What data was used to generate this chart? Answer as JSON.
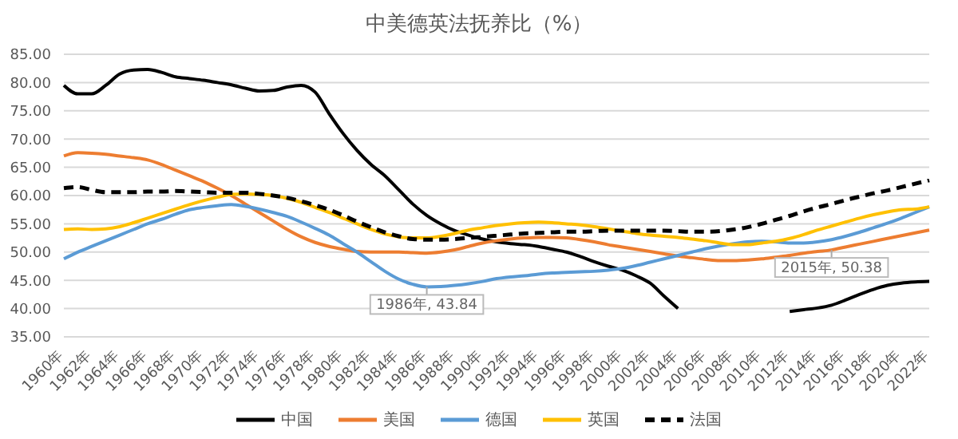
{
  "chart_data": {
    "type": "line",
    "title": "中美德英法抚养比（%）",
    "categories": [
      "1960年",
      null,
      "1962年",
      null,
      "1964年",
      null,
      "1966年",
      null,
      "1968年",
      null,
      "1970年",
      null,
      "1972年",
      null,
      "1974年",
      null,
      "1976年",
      null,
      "1978年",
      null,
      "1980年",
      null,
      "1982年",
      null,
      "1984年",
      null,
      "1986年",
      null,
      "1988年",
      null,
      "1990年",
      null,
      "1992年",
      null,
      "1994年",
      null,
      "1996年",
      null,
      "1998年",
      null,
      "2000年",
      null,
      "2002年",
      null,
      "2004年",
      null,
      "2006年",
      null,
      "2008年",
      null,
      "2010年",
      null,
      "2012年",
      null,
      "2014年",
      null,
      "2016年",
      null,
      "2018年",
      null,
      "2020年",
      null,
      "2022年"
    ],
    "series": [
      {
        "name": "中国",
        "color": "#000000",
        "values": [
          79.5,
          78,
          78,
          79.5,
          81.5,
          82.2,
          82.3,
          81.8,
          81,
          80.7,
          80.4,
          80,
          79.6,
          79,
          78.5,
          78.6,
          79.2,
          79.5,
          78.3,
          74.5,
          71,
          68,
          65.5,
          63.5,
          61,
          58.5,
          56.5,
          55,
          53.8,
          53,
          52.3,
          51.8,
          51.5,
          51.3,
          51,
          50.5,
          50,
          49.2,
          48.3,
          47.5,
          46.8,
          45.8,
          44.5,
          42.2,
          40,
          null,
          null,
          null,
          null,
          null,
          null,
          null,
          39.5,
          39.8,
          40.1,
          40.6,
          41.5,
          42.5,
          43.4,
          44.1,
          44.5,
          44.7,
          44.8
        ]
      },
      {
        "name": "美国",
        "color": "#ed7d31",
        "values": [
          67,
          67.6,
          67.5,
          67.3,
          67,
          66.7,
          66.3,
          65.5,
          64.5,
          63.5,
          62.5,
          61.3,
          60,
          58.5,
          57,
          55.5,
          54,
          52.7,
          51.7,
          51,
          50.5,
          50.1,
          50,
          50,
          50,
          49.9,
          49.8,
          50,
          50.4,
          51,
          51.6,
          52,
          52.3,
          52.5,
          52.6,
          52.6,
          52.5,
          52.2,
          51.8,
          51.3,
          50.9,
          50.5,
          50.1,
          49.7,
          49.3,
          49,
          48.7,
          48.5,
          48.5,
          48.6,
          48.8,
          49.1,
          49.4,
          49.8,
          50.1,
          50.38,
          50.9,
          51.4,
          51.9,
          52.4,
          52.9,
          53.4,
          53.9
        ]
      },
      {
        "name": "德国",
        "color": "#5b9bd5",
        "values": [
          48.8,
          50,
          51,
          52,
          53,
          54,
          55,
          55.8,
          56.7,
          57.5,
          57.9,
          58.2,
          58.4,
          58.1,
          57.6,
          57,
          56.3,
          55.3,
          54.2,
          53,
          51.5,
          50,
          48.3,
          46.6,
          45.2,
          44.3,
          43.84,
          43.9,
          44.1,
          44.4,
          44.8,
          45.3,
          45.6,
          45.8,
          46.1,
          46.3,
          46.4,
          46.5,
          46.6,
          46.8,
          47.1,
          47.6,
          48.2,
          48.8,
          49.4,
          50,
          50.6,
          51.1,
          51.5,
          51.8,
          51.9,
          51.8,
          51.6,
          51.6,
          51.8,
          52.2,
          52.8,
          53.5,
          54.3,
          55.1,
          56,
          57,
          58
        ]
      },
      {
        "name": "英国",
        "color": "#ffc000",
        "values": [
          54,
          54.1,
          54,
          54.1,
          54.5,
          55.2,
          56,
          56.8,
          57.6,
          58.4,
          59.1,
          59.7,
          60.2,
          60.3,
          60.2,
          60,
          59.5,
          58.8,
          57.9,
          57,
          56,
          55,
          54,
          53.2,
          52.7,
          52.5,
          52.5,
          52.8,
          53.3,
          53.9,
          54.3,
          54.7,
          55,
          55.2,
          55.3,
          55.2,
          55,
          54.8,
          54.5,
          54.1,
          53.7,
          53.3,
          53,
          52.8,
          52.6,
          52.3,
          52,
          51.6,
          51.3,
          51.3,
          51.6,
          51.9,
          52.4,
          53.1,
          53.9,
          54.6,
          55.3,
          56,
          56.6,
          57.1,
          57.5,
          57.6,
          58
        ]
      },
      {
        "name": "法国",
        "color": "#000000",
        "line_style": "dashed",
        "values": [
          61.3,
          61.5,
          61,
          60.6,
          60.6,
          60.6,
          60.7,
          60.7,
          60.8,
          60.7,
          60.6,
          60.5,
          60.5,
          60.5,
          60.3,
          60,
          59.6,
          59,
          58.3,
          57.5,
          56.5,
          55.4,
          54.4,
          53.5,
          52.8,
          52.3,
          52.2,
          52.2,
          52.3,
          52.5,
          52.7,
          52.9,
          53.1,
          53.3,
          53.4,
          53.5,
          53.6,
          53.6,
          53.7,
          53.8,
          53.8,
          53.8,
          53.8,
          53.8,
          53.7,
          53.6,
          53.6,
          53.7,
          54,
          54.4,
          55,
          55.7,
          56.4,
          57.2,
          57.9,
          58.5,
          59.2,
          59.8,
          60.4,
          60.9,
          61.5,
          62.1,
          62.7
        ]
      }
    ],
    "ylim": [
      35,
      85
    ],
    "yticks": [
      {
        "value": 35,
        "label": "35.00"
      },
      {
        "value": 40,
        "label": "40.00"
      },
      {
        "value": 45,
        "label": "45.00"
      },
      {
        "value": 50,
        "label": "50.00"
      },
      {
        "value": 55,
        "label": "55.00"
      },
      {
        "value": 60,
        "label": "60.00"
      },
      {
        "value": 65,
        "label": "65.00"
      },
      {
        "value": 70,
        "label": "70.00"
      },
      {
        "value": 75,
        "label": "75.00"
      },
      {
        "value": 80,
        "label": "80.00"
      },
      {
        "value": 85,
        "label": "85.00"
      }
    ],
    "grid": "y",
    "legend": "bottom",
    "marker": "none",
    "line_style": "solid",
    "annotations": [
      {
        "text": "1986年, 43.84",
        "x": "1986年",
        "y": 43.84
      },
      {
        "text": "2015年, 50.38",
        "y": 50.38
      }
    ]
  }
}
